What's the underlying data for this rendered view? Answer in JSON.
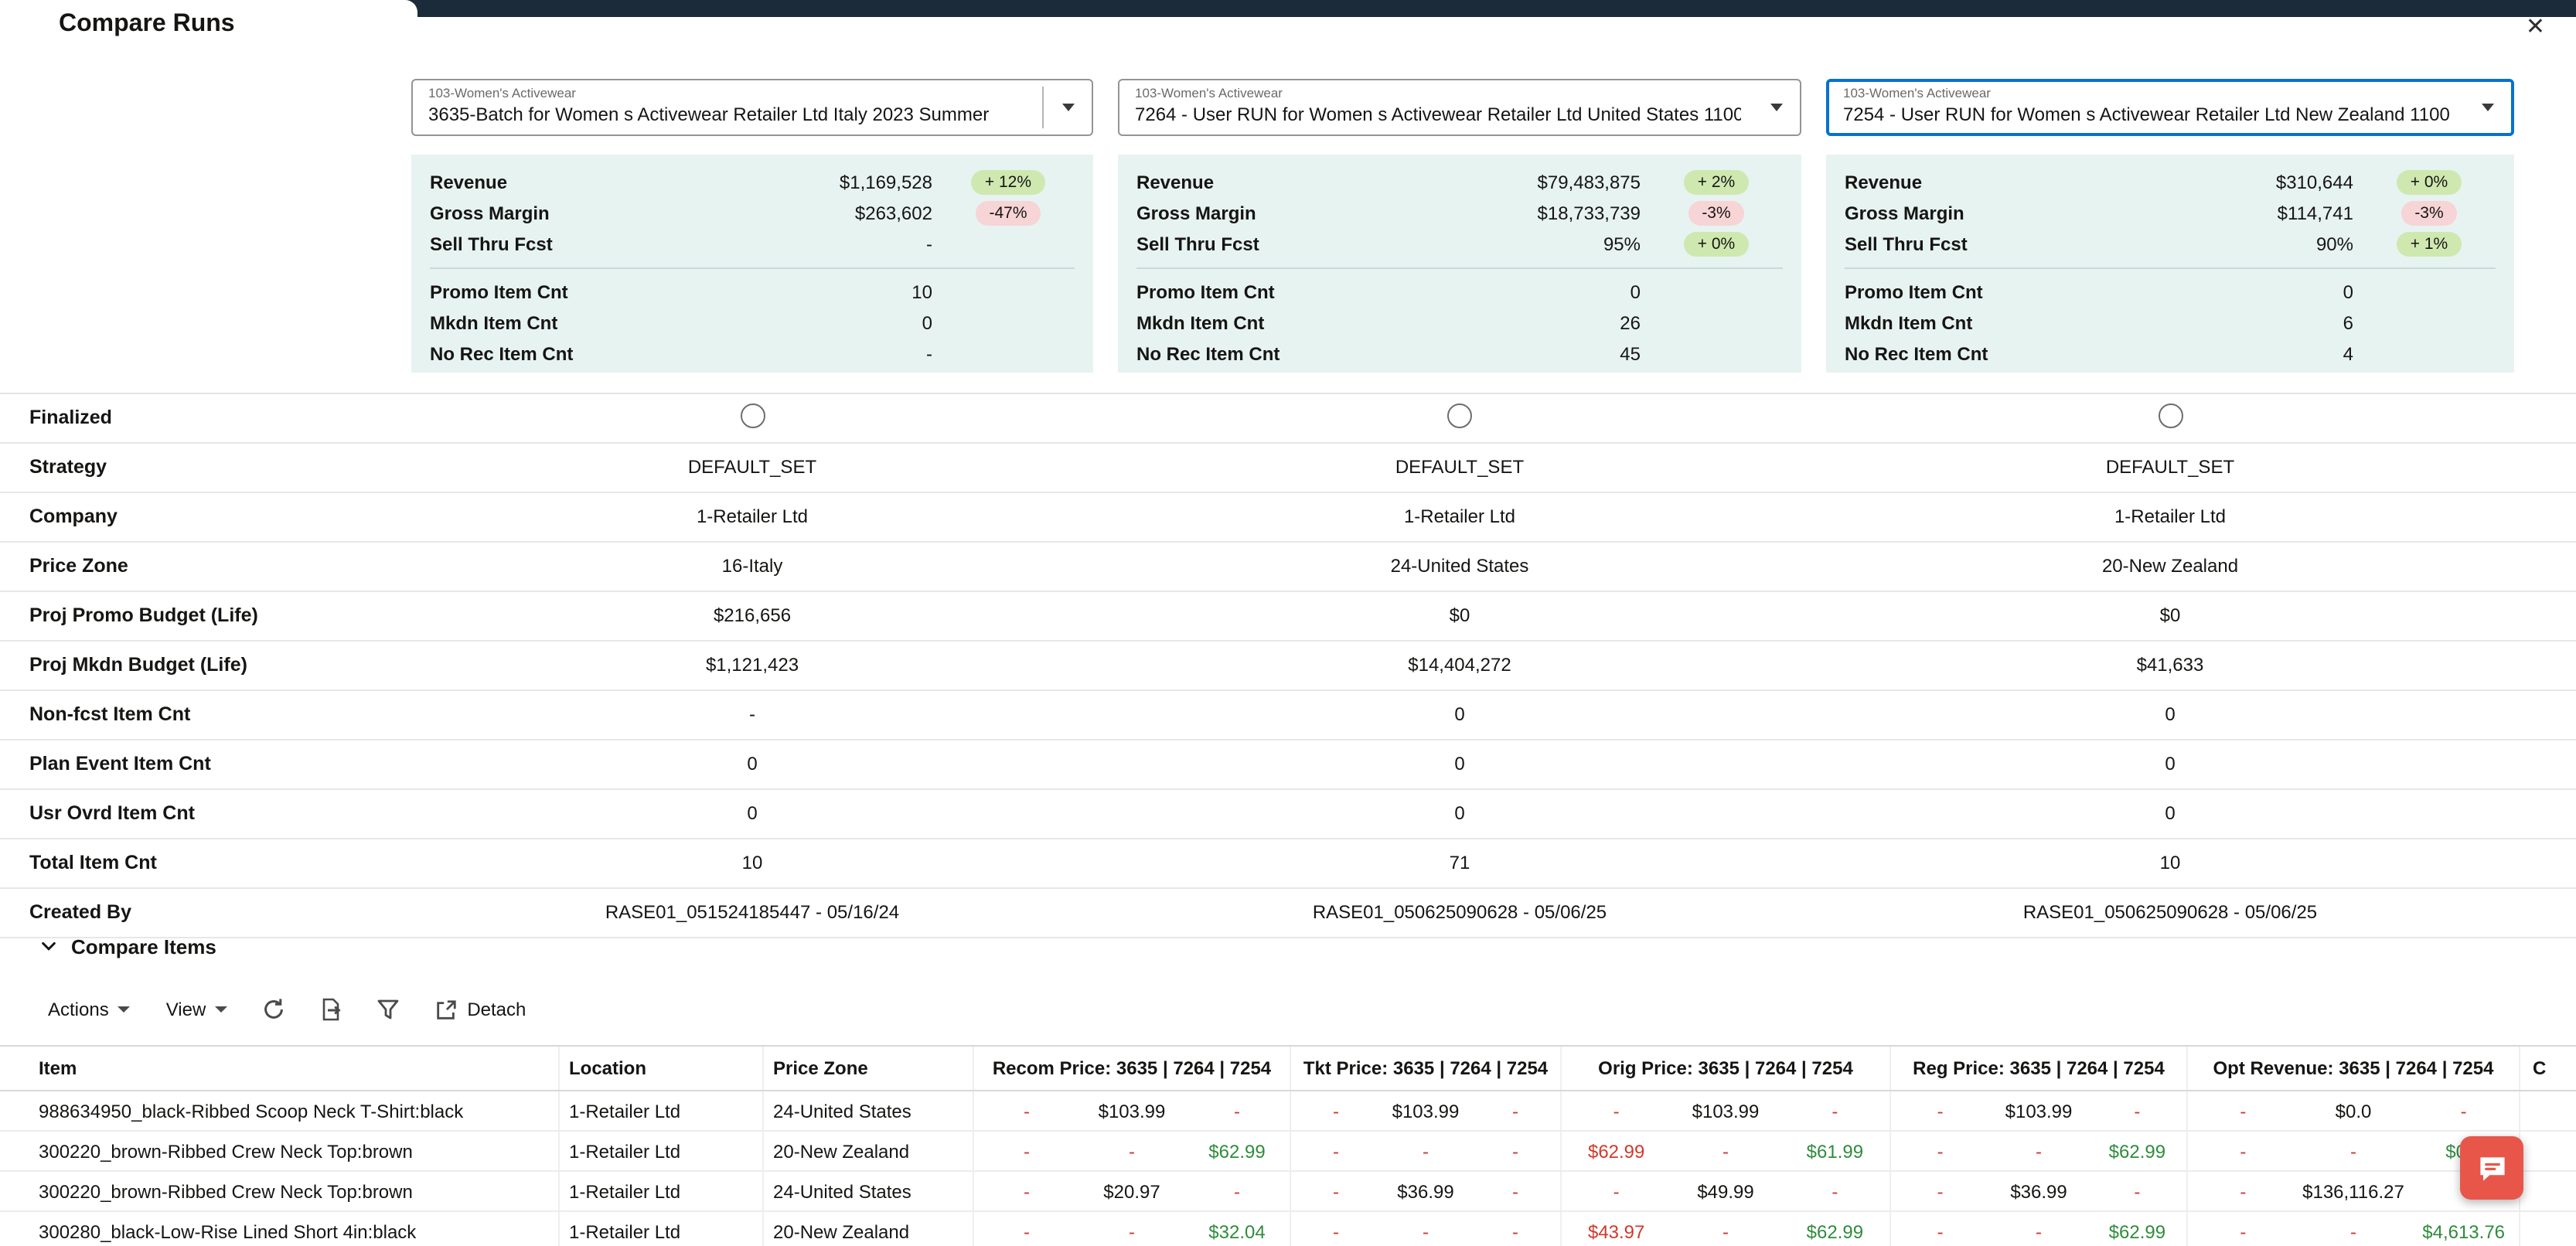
{
  "header": {
    "title": "Compare Runs",
    "close_icon": "✕"
  },
  "theme": {
    "top_bar": "#1b2b3a",
    "card_bg": "#e7f3f1",
    "badge_positive_bg": "#cfe8b0",
    "badge_negative_bg": "#f7d4d6",
    "positive_text": "#2f8c3c",
    "negative_text": "#d2382c",
    "focus_border": "#0572ce",
    "chat_button_bg": "#e8564a"
  },
  "run_selectors": [
    {
      "context": "103-Women's Activewear",
      "value": "3635-Batch for Women s Activewear Retailer Ltd Italy 2023 Summer",
      "focused": false
    },
    {
      "context": "103-Women's Activewear",
      "value": "7264 - User RUN for Women s Activewear Retailer Ltd United States 1100",
      "focused": false
    },
    {
      "context": "103-Women's Activewear",
      "value": "7254 - User RUN for Women s Activewear Retailer Ltd New Zealand 1100",
      "focused": true
    }
  ],
  "summary_cards": [
    {
      "metrics": [
        {
          "label": "Revenue",
          "value": "$1,169,528",
          "badge": "+ 12%",
          "badge_type": "positive"
        },
        {
          "label": "Gross Margin",
          "value": "$263,602",
          "badge": "-47%",
          "badge_type": "negative"
        },
        {
          "label": "Sell Thru Fcst",
          "value": "-",
          "badge": null,
          "badge_type": null
        }
      ],
      "counts": [
        {
          "label": "Promo Item Cnt",
          "value": "10"
        },
        {
          "label": "Mkdn Item Cnt",
          "value": "0"
        },
        {
          "label": "No Rec Item Cnt",
          "value": "-"
        }
      ]
    },
    {
      "metrics": [
        {
          "label": "Revenue",
          "value": "$79,483,875",
          "badge": "+ 2%",
          "badge_type": "positive"
        },
        {
          "label": "Gross Margin",
          "value": "$18,733,739",
          "badge": "-3%",
          "badge_type": "negative"
        },
        {
          "label": "Sell Thru Fcst",
          "value": "95%",
          "badge": "+ 0%",
          "badge_type": "positive"
        }
      ],
      "counts": [
        {
          "label": "Promo Item Cnt",
          "value": "0"
        },
        {
          "label": "Mkdn Item Cnt",
          "value": "26"
        },
        {
          "label": "No Rec Item Cnt",
          "value": "45"
        }
      ]
    },
    {
      "metrics": [
        {
          "label": "Revenue",
          "value": "$310,644",
          "badge": "+ 0%",
          "badge_type": "positive"
        },
        {
          "label": "Gross Margin",
          "value": "$114,741",
          "badge": "-3%",
          "badge_type": "negative"
        },
        {
          "label": "Sell Thru Fcst",
          "value": "90%",
          "badge": "+ 1%",
          "badge_type": "positive"
        }
      ],
      "counts": [
        {
          "label": "Promo Item Cnt",
          "value": "0"
        },
        {
          "label": "Mkdn Item Cnt",
          "value": "6"
        },
        {
          "label": "No Rec Item Cnt",
          "value": "4"
        }
      ]
    }
  ],
  "comparison_rows": [
    {
      "label": "Finalized",
      "type": "radio"
    },
    {
      "label": "Strategy",
      "values": [
        "DEFAULT_SET",
        "DEFAULT_SET",
        "DEFAULT_SET"
      ]
    },
    {
      "label": "Company",
      "values": [
        "1-Retailer Ltd",
        "1-Retailer Ltd",
        "1-Retailer Ltd"
      ]
    },
    {
      "label": "Price Zone",
      "values": [
        "16-Italy",
        "24-United States",
        "20-New Zealand"
      ]
    },
    {
      "label": "Proj Promo Budget (Life)",
      "values": [
        "$216,656",
        "$0",
        "$0"
      ]
    },
    {
      "label": "Proj Mkdn Budget (Life)",
      "values": [
        "$1,121,423",
        "$14,404,272",
        "$41,633"
      ]
    },
    {
      "label": "Non-fcst Item Cnt",
      "values": [
        "-",
        "0",
        "0"
      ]
    },
    {
      "label": "Plan Event Item Cnt",
      "values": [
        "0",
        "0",
        "0"
      ]
    },
    {
      "label": "Usr Ovrd Item Cnt",
      "values": [
        "0",
        "0",
        "0"
      ]
    },
    {
      "label": "Total Item Cnt",
      "values": [
        "10",
        "71",
        "10"
      ]
    },
    {
      "label": "Created By",
      "values": [
        "RASE01_051524185447 - 05/16/24",
        "RASE01_050625090628 - 05/06/25",
        "RASE01_050625090628 - 05/06/25"
      ]
    }
  ],
  "compare_items": {
    "title": "Compare Items",
    "toolbar": {
      "actions": "Actions",
      "view": "View",
      "detach": "Detach"
    },
    "table": {
      "columns": {
        "item": "Item",
        "location": "Location",
        "price_zone": "Price Zone",
        "recom": "Recom Price: 3635 | 7264 | 7254",
        "tkt": "Tkt Price: 3635 | 7264 | 7254",
        "orig": "Orig Price: 3635 | 7264 | 7254",
        "reg": "Reg Price: 3635 | 7264 | 7254",
        "opt_revenue": "Opt Revenue: 3635 | 7264 | 7254",
        "clipped": "C"
      },
      "rows": [
        {
          "item": "988634950_black-Ribbed Scoop Neck T-Shirt:black",
          "location": "1-Retailer Ltd",
          "price_zone": "24-United States",
          "recom": [
            {
              "t": "-",
              "c": "neg"
            },
            {
              "t": "$103.99",
              "c": "def"
            },
            {
              "t": "-",
              "c": "neg"
            }
          ],
          "tkt": [
            {
              "t": "-",
              "c": "neg"
            },
            {
              "t": "$103.99",
              "c": "def"
            },
            {
              "t": "-",
              "c": "neg"
            }
          ],
          "orig": [
            {
              "t": "-",
              "c": "neg"
            },
            {
              "t": "$103.99",
              "c": "def"
            },
            {
              "t": "-",
              "c": "neg"
            }
          ],
          "reg": [
            {
              "t": "-",
              "c": "neg"
            },
            {
              "t": "$103.99",
              "c": "def"
            },
            {
              "t": "-",
              "c": "neg"
            }
          ],
          "opt": [
            {
              "t": "-",
              "c": "neg"
            },
            {
              "t": "$0.0",
              "c": "def"
            },
            {
              "t": "-",
              "c": "neg"
            }
          ]
        },
        {
          "item": "300220_brown-Ribbed Crew Neck Top:brown",
          "location": "1-Retailer Ltd",
          "price_zone": "20-New Zealand",
          "recom": [
            {
              "t": "-",
              "c": "neg"
            },
            {
              "t": "-",
              "c": "neg"
            },
            {
              "t": "$62.99",
              "c": "pos"
            }
          ],
          "tkt": [
            {
              "t": "-",
              "c": "neg"
            },
            {
              "t": "-",
              "c": "neg"
            },
            {
              "t": "-",
              "c": "neg"
            }
          ],
          "orig": [
            {
              "t": "$62.99",
              "c": "neg"
            },
            {
              "t": "-",
              "c": "neg"
            },
            {
              "t": "$61.99",
              "c": "pos"
            }
          ],
          "reg": [
            {
              "t": "-",
              "c": "neg"
            },
            {
              "t": "-",
              "c": "neg"
            },
            {
              "t": "$62.99",
              "c": "pos"
            }
          ],
          "opt": [
            {
              "t": "-",
              "c": "neg"
            },
            {
              "t": "-",
              "c": "neg"
            },
            {
              "t": "$0.0",
              "c": "pos"
            }
          ]
        },
        {
          "item": "300220_brown-Ribbed Crew Neck Top:brown",
          "location": "1-Retailer Ltd",
          "price_zone": "24-United States",
          "recom": [
            {
              "t": "-",
              "c": "neg"
            },
            {
              "t": "$20.97",
              "c": "def"
            },
            {
              "t": "-",
              "c": "neg"
            }
          ],
          "tkt": [
            {
              "t": "-",
              "c": "neg"
            },
            {
              "t": "$36.99",
              "c": "def"
            },
            {
              "t": "-",
              "c": "neg"
            }
          ],
          "orig": [
            {
              "t": "-",
              "c": "neg"
            },
            {
              "t": "$49.99",
              "c": "def"
            },
            {
              "t": "-",
              "c": "neg"
            }
          ],
          "reg": [
            {
              "t": "-",
              "c": "neg"
            },
            {
              "t": "$36.99",
              "c": "def"
            },
            {
              "t": "-",
              "c": "neg"
            }
          ],
          "opt": [
            {
              "t": "-",
              "c": "neg"
            },
            {
              "t": "$136,116.27",
              "c": "def"
            },
            {
              "t": "-",
              "c": "neg"
            }
          ]
        },
        {
          "item": "300280_black-Low-Rise Lined Short 4in:black",
          "location": "1-Retailer Ltd",
          "price_zone": "20-New Zealand",
          "recom": [
            {
              "t": "-",
              "c": "neg"
            },
            {
              "t": "-",
              "c": "neg"
            },
            {
              "t": "$32.04",
              "c": "pos"
            }
          ],
          "tkt": [
            {
              "t": "-",
              "c": "neg"
            },
            {
              "t": "-",
              "c": "neg"
            },
            {
              "t": "-",
              "c": "neg"
            }
          ],
          "orig": [
            {
              "t": "$43.97",
              "c": "neg"
            },
            {
              "t": "-",
              "c": "neg"
            },
            {
              "t": "$62.99",
              "c": "pos"
            }
          ],
          "reg": [
            {
              "t": "-",
              "c": "neg"
            },
            {
              "t": "-",
              "c": "neg"
            },
            {
              "t": "$62.99",
              "c": "pos"
            }
          ],
          "opt": [
            {
              "t": "-",
              "c": "neg"
            },
            {
              "t": "-",
              "c": "neg"
            },
            {
              "t": "$4,613.76",
              "c": "pos"
            }
          ]
        }
      ]
    }
  }
}
